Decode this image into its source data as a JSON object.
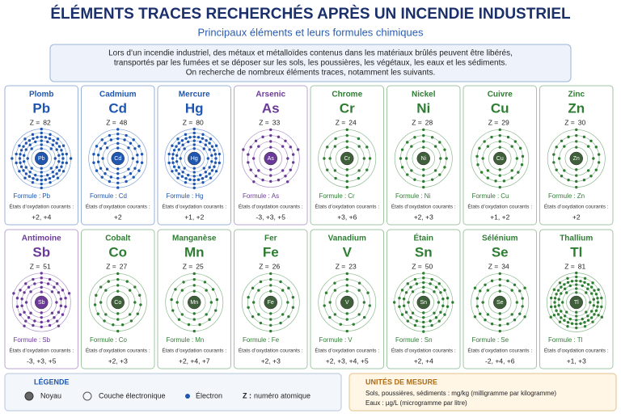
{
  "header": {
    "title": "ÉLÉMENTS TRACES RECHERCHÉS APRÈS UN INCENDIE INDUSTRIEL",
    "subtitle": "Principaux éléments et leurs formules chimiques"
  },
  "intro": [
    "Lors d’un incendie industriel, des métaux et métalloïdes contenus dans les matériaux brûlés peuvent être libérés,",
    "transportés par les fumées et se déposer sur les sols, les poussières, les végétaux, les eaux et les sédiments.",
    "On recherche de nombreux éléments traces, notamment les suivants."
  ],
  "labels": {
    "z_prefix": "Z =",
    "formula_prefix": "Formule :",
    "states_label": "États d’oxydation courants :"
  },
  "elements": [
    {
      "name": "Plomb",
      "symbol": "Pb",
      "z": 82,
      "formula": "Pb",
      "states": "+2, +4",
      "color": "#1f56b0"
    },
    {
      "name": "Cadmium",
      "symbol": "Cd",
      "z": 48,
      "formula": "Cd",
      "states": "+2",
      "color": "#1f56b0"
    },
    {
      "name": "Mercure",
      "symbol": "Hg",
      "z": 80,
      "formula": "Hg",
      "states": "+1, +2",
      "color": "#1f56b0"
    },
    {
      "name": "Arsenic",
      "symbol": "As",
      "z": 33,
      "formula": "As",
      "states": "-3, +3, +5",
      "color": "#6b3a98"
    },
    {
      "name": "Chrome",
      "symbol": "Cr",
      "z": 24,
      "formula": "Cr",
      "states": "+3, +6",
      "color": "#2e7d32"
    },
    {
      "name": "Nickel",
      "symbol": "Ni",
      "z": 28,
      "formula": "Ni",
      "states": "+2, +3",
      "color": "#2e7d32"
    },
    {
      "name": "Cuivre",
      "symbol": "Cu",
      "z": 29,
      "formula": "Cu",
      "states": "+1, +2",
      "color": "#2e7d32"
    },
    {
      "name": "Zinc",
      "symbol": "Zn",
      "z": 30,
      "formula": "Zn",
      "states": "+2",
      "color": "#2e7d32"
    },
    {
      "name": "Antimoine",
      "symbol": "Sb",
      "z": 51,
      "formula": "Sb",
      "states": "-3, +3, +5",
      "color": "#6b3a98"
    },
    {
      "name": "Cobalt",
      "symbol": "Co",
      "z": 27,
      "formula": "Co",
      "states": "+2, +3",
      "color": "#2e7d32"
    },
    {
      "name": "Manganèse",
      "symbol": "Mn",
      "z": 25,
      "formula": "Mn",
      "states": "+2, +4, +7",
      "color": "#2e7d32"
    },
    {
      "name": "Fer",
      "symbol": "Fe",
      "z": 26,
      "formula": "Fe",
      "states": "+2, +3",
      "color": "#2e7d32"
    },
    {
      "name": "Vanadium",
      "symbol": "V",
      "z": 23,
      "formula": "V",
      "states": "+2, +3, +4, +5",
      "color": "#2e7d32"
    },
    {
      "name": "Étain",
      "symbol": "Sn",
      "z": 50,
      "formula": "Sn",
      "states": "+2, +4",
      "color": "#2e7d32"
    },
    {
      "name": "Sélénium",
      "symbol": "Se",
      "z": 34,
      "formula": "Se",
      "states": "-2, +4, +6",
      "color": "#2e7d32"
    },
    {
      "name": "Thallium",
      "symbol": "Tl",
      "z": 81,
      "formula": "Tl",
      "states": "+1, +3",
      "color": "#2e7d32"
    }
  ],
  "legend": {
    "title": "LÉGENDE",
    "nucleus": "Noyau",
    "shell": "Couche électronique",
    "electron": "Électron",
    "z_key": "Z :",
    "z_text": "numéro atomique"
  },
  "units": {
    "title": "UNITÉS DE MESURE",
    "lines": [
      "Sols, poussières, sédiments : mg/kg (milligramme par kilogramme)",
      "Eaux : µg/L (microgramme par litre)"
    ]
  }
}
